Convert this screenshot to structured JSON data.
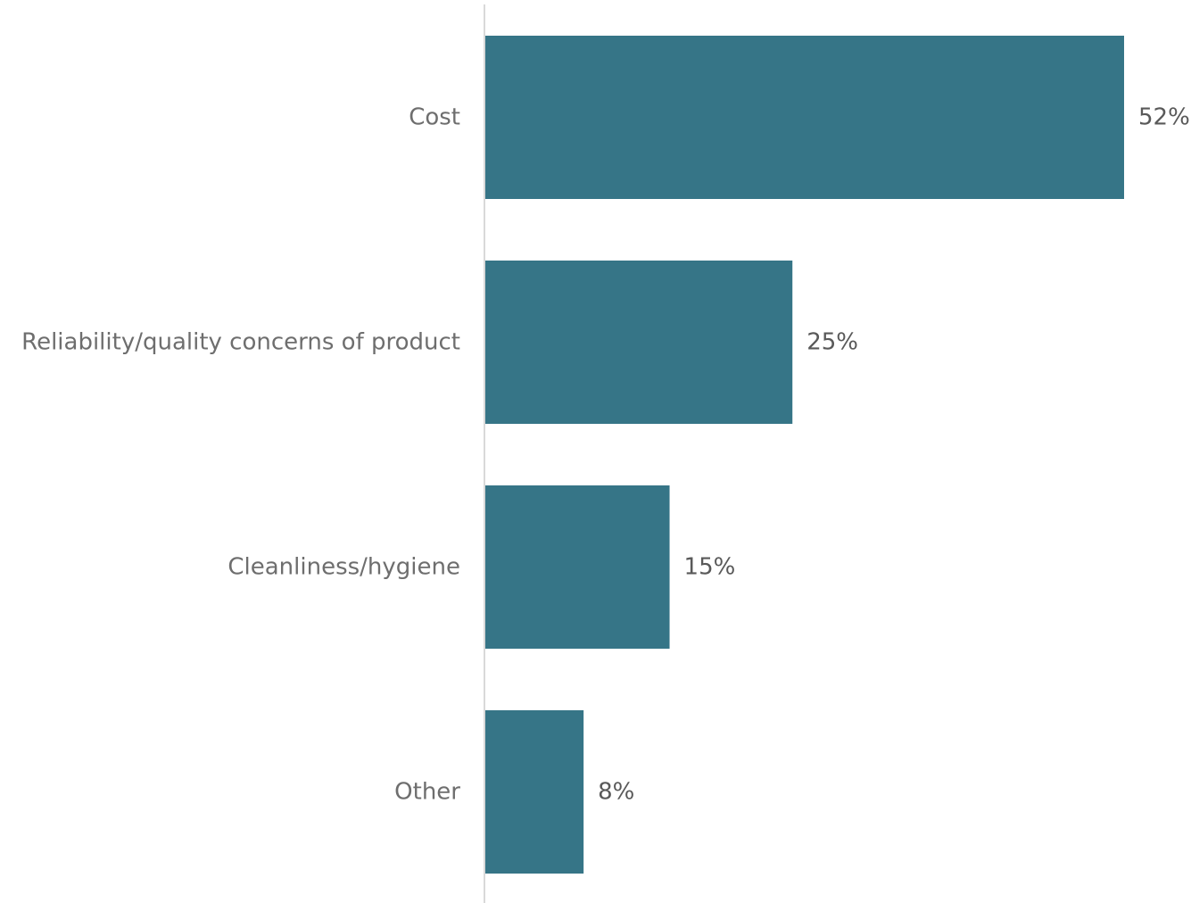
{
  "chart_data": {
    "type": "bar",
    "orientation": "horizontal",
    "categories": [
      "Cost",
      "Reliability/quality concerns of product",
      "Cleanliness/hygiene",
      "Other"
    ],
    "values": [
      52,
      25,
      15,
      8
    ],
    "value_labels": [
      "52%",
      "25%",
      "15%",
      "8%"
    ],
    "unit": "%",
    "title": "",
    "xlabel": "",
    "ylabel": "",
    "xlim": [
      0,
      52
    ],
    "grid": false,
    "legend": "none",
    "colors": {
      "bar": "#367587",
      "axis": "#d9d9d9",
      "category_text": "#6e6e6e",
      "value_text": "#595959"
    }
  }
}
